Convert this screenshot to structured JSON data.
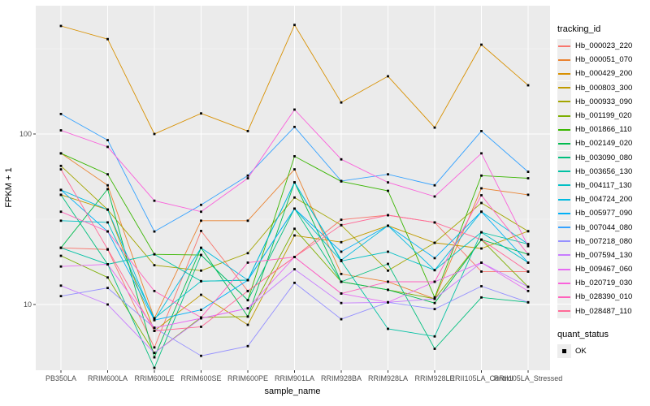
{
  "chart_data": {
    "type": "line",
    "title": "",
    "xlabel": "sample_name",
    "ylabel": "FPKM + 1",
    "y_scale": "log10",
    "y_ticks": [
      10,
      100
    ],
    "y_minor_ticks": [
      31.6,
      316
    ],
    "ylim": [
      4.2,
      560
    ],
    "grid": true,
    "legend_position": "right",
    "categories": [
      "PB350LA",
      "RRIM600LA",
      "RRIM600LE",
      "RRIM600SE",
      "RRIM600PE",
      "RRIM901LA",
      "RRIM928BA",
      "RRIM928LA",
      "RRIM928LE",
      "RRII105LA_Control",
      "RRII105LA_Stressed"
    ],
    "series": [
      {
        "name": "Hb_000023_220",
        "color": "#F8766D",
        "values": [
          21.5,
          21,
          5.6,
          27,
          12,
          19,
          31.4,
          33.4,
          30.3,
          15.6,
          15.6
        ]
      },
      {
        "name": "Hb_000051_070",
        "color": "#EA8331",
        "values": [
          77,
          50,
          8.3,
          31,
          31,
          62,
          15.1,
          13.6,
          10.8,
          48,
          44
        ]
      },
      {
        "name": "Hb_000429_200",
        "color": "#D89000",
        "values": [
          430,
          360,
          100,
          132,
          104,
          436,
          153,
          218,
          109,
          334,
          193
        ]
      },
      {
        "name": "Hb_000803_300",
        "color": "#C09B00",
        "values": [
          44,
          36,
          7.0,
          11.4,
          7.6,
          25.4,
          23.2,
          29,
          23,
          21.3,
          26.9
        ]
      },
      {
        "name": "Hb_000933_090",
        "color": "#A3A500",
        "values": [
          65,
          36,
          17,
          15.8,
          20,
          42.4,
          29.2,
          15.8,
          23,
          39.4,
          26.9
        ]
      },
      {
        "name": "Hb_001199_020",
        "color": "#7CAE00",
        "values": [
          19.3,
          14.4,
          5.2,
          8.4,
          8.5,
          27.8,
          13.6,
          12.2,
          10.8,
          24,
          12.7
        ]
      },
      {
        "name": "Hb_001866_110",
        "color": "#39B600",
        "values": [
          77,
          58,
          19.7,
          19.5,
          10.6,
          74,
          52.7,
          46.4,
          11,
          57,
          55
        ]
      },
      {
        "name": "Hb_002149_020",
        "color": "#00BB4E",
        "values": [
          21.5,
          47.5,
          4.9,
          21.5,
          8.5,
          52,
          13.6,
          12.2,
          10.2,
          24,
          19.7
        ]
      },
      {
        "name": "Hb_003090_080",
        "color": "#00BF7D",
        "values": [
          44,
          17.2,
          4.25,
          19.5,
          10.6,
          36.5,
          13.6,
          17.3,
          5.5,
          11,
          10.3
        ]
      },
      {
        "name": "Hb_003656_130",
        "color": "#00C1A3",
        "values": [
          21.5,
          17.2,
          19.7,
          13.7,
          13.9,
          52,
          18,
          7.2,
          6.5,
          26.5,
          22.6
        ]
      },
      {
        "name": "Hb_004117_130",
        "color": "#00BFC4",
        "values": [
          31,
          30.3,
          8.3,
          13.7,
          13.9,
          36.5,
          18,
          20.4,
          15.9,
          26.5,
          17.6
        ]
      },
      {
        "name": "Hb_004724_200",
        "color": "#00BAE0",
        "values": [
          47,
          36,
          8.1,
          21.5,
          13.9,
          52,
          18.2,
          29,
          15.9,
          35,
          22.6
        ]
      },
      {
        "name": "Hb_005977_090",
        "color": "#00B0F6",
        "values": [
          47,
          26.8,
          8.1,
          9.3,
          13.9,
          36.5,
          20.4,
          29,
          18.7,
          35,
          17.6
        ]
      },
      {
        "name": "Hb_007044_080",
        "color": "#35A2FF",
        "values": [
          131,
          92,
          26.8,
          38.4,
          57,
          110,
          53,
          58,
          50,
          104,
          60
        ]
      },
      {
        "name": "Hb_007218_080",
        "color": "#9590FF",
        "values": [
          11.2,
          12.5,
          7.3,
          5.0,
          5.7,
          13.4,
          8.2,
          10.3,
          9.4,
          12.8,
          10.3
        ]
      },
      {
        "name": "Hb_007594_130",
        "color": "#C77CFF",
        "values": [
          12.9,
          10,
          5.2,
          8.3,
          9.5,
          16.1,
          10.2,
          10.3,
          10.8,
          17.6,
          12.7
        ]
      },
      {
        "name": "Hb_009467_060",
        "color": "#E76BF3",
        "values": [
          16.7,
          17.2,
          7.3,
          8.3,
          9.5,
          19,
          11.6,
          10.3,
          13.6,
          17.6,
          12
        ]
      },
      {
        "name": "Hb_020719_030",
        "color": "#FA62DB",
        "values": [
          105,
          84,
          40.6,
          35,
          55,
          139,
          71,
          52,
          43,
          77,
          22
        ]
      },
      {
        "name": "Hb_028390_010",
        "color": "#FF62BC",
        "values": [
          35,
          26.8,
          12,
          8.4,
          17.6,
          19,
          11.6,
          13.6,
          13.6,
          43.7,
          19.7
        ]
      },
      {
        "name": "Hb_028487_110",
        "color": "#FF6A98",
        "values": [
          62,
          21.1,
          7.0,
          7.4,
          12,
          19,
          29.2,
          33.4,
          30.3,
          24,
          15.6
        ]
      }
    ],
    "legend": {
      "color_title": "tracking_id",
      "shape_title": "quant_status",
      "shape_items": [
        {
          "label": "OK",
          "marker": "black-square"
        }
      ]
    }
  },
  "colors": {
    "panel_bg": "#EBEBEB",
    "grid_major": "#FFFFFF",
    "grid_minor": "#F5F5F5",
    "axis_text": "#4d4d4d",
    "point": "#000000",
    "legend_key_bg": "#EDEDED"
  }
}
